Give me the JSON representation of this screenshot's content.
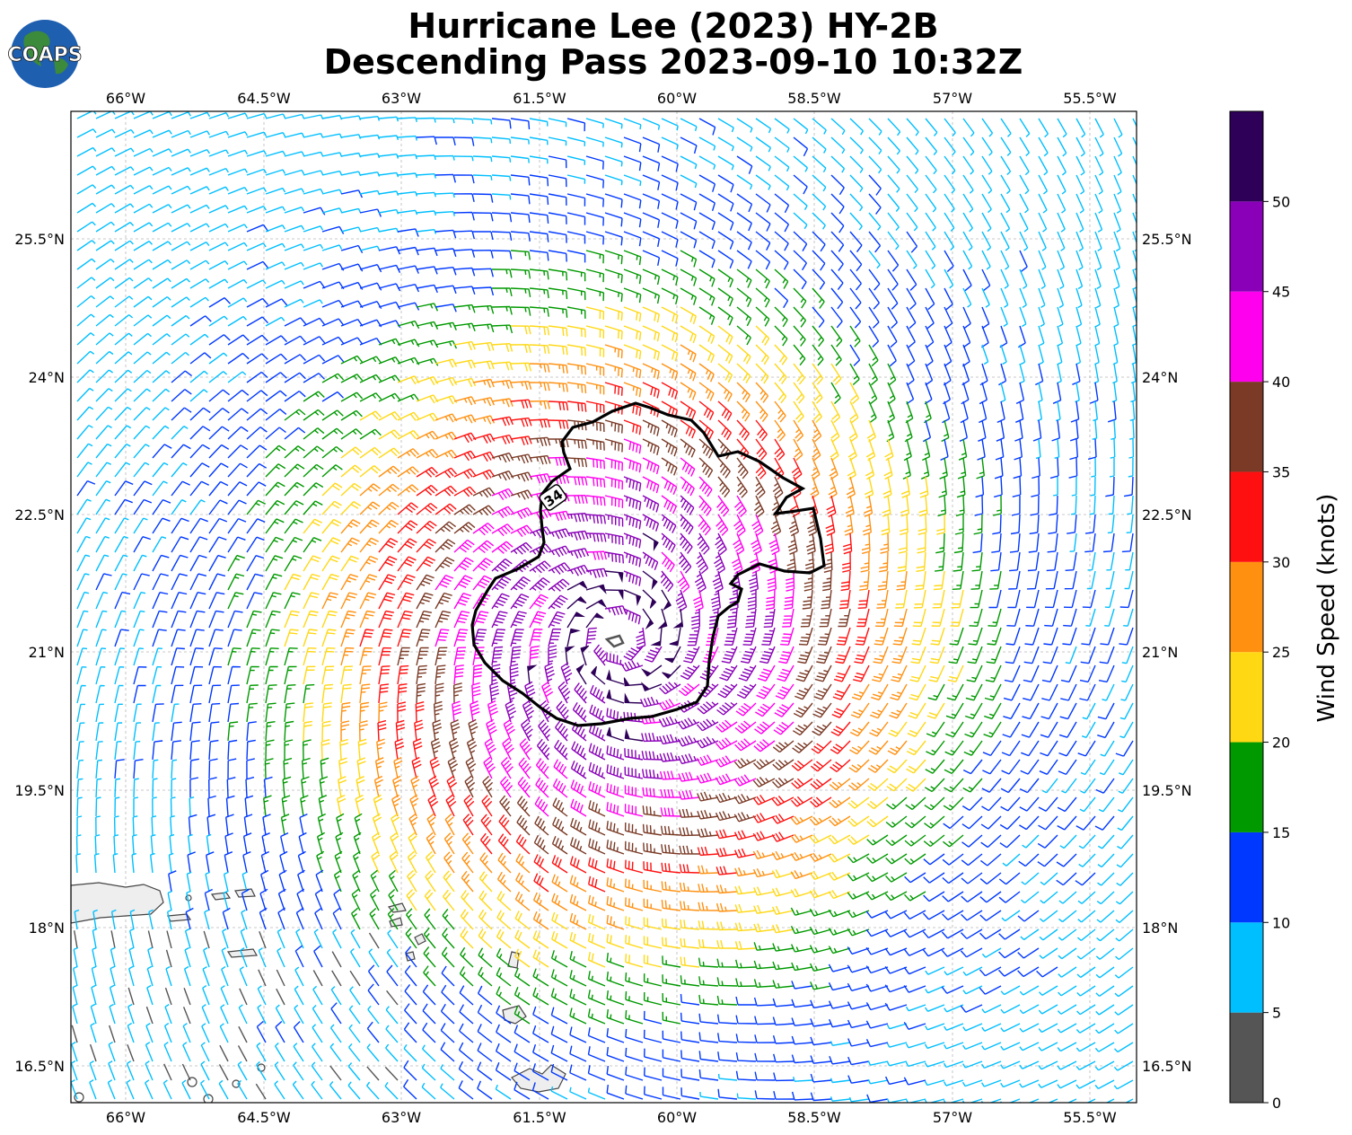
{
  "title": {
    "line1": "Hurricane Lee (2023) HY-2B",
    "line2": "Descending Pass 2023-09-10 10:32Z"
  },
  "logo": {
    "text": "COAPS"
  },
  "map": {
    "lon_ticks": [
      "66°W",
      "64.5°W",
      "63°W",
      "61.5°W",
      "60°W",
      "58.5°W",
      "57°W",
      "55.5°W"
    ],
    "lat_ticks": [
      "25.5°N",
      "24°N",
      "22.5°N",
      "21°N",
      "19.5°N",
      "18°N",
      "16.5°N"
    ],
    "contour_label": "34",
    "center": {
      "lon": -60.6,
      "lat": 21.15
    }
  },
  "colorbar": {
    "label": "Wind Speed (knots)",
    "ticks": [
      "0",
      "5",
      "10",
      "15",
      "20",
      "25",
      "30",
      "35",
      "40",
      "45",
      "50"
    ],
    "bins": [
      {
        "min": 0,
        "max": 5,
        "color": "#555555"
      },
      {
        "min": 5,
        "max": 10,
        "color": "#00bfff"
      },
      {
        "min": 10,
        "max": 15,
        "color": "#0038ff"
      },
      {
        "min": 15,
        "max": 20,
        "color": "#009900"
      },
      {
        "min": 20,
        "max": 25,
        "color": "#ffd814"
      },
      {
        "min": 25,
        "max": 30,
        "color": "#ff9010"
      },
      {
        "min": 30,
        "max": 35,
        "color": "#ff1010"
      },
      {
        "min": 35,
        "max": 40,
        "color": "#7a3a26"
      },
      {
        "min": 40,
        "max": 45,
        "color": "#ff00ee"
      },
      {
        "min": 45,
        "max": 50,
        "color": "#8a00b8"
      },
      {
        "min": 50,
        "max": 55,
        "color": "#2e0058"
      }
    ]
  }
}
